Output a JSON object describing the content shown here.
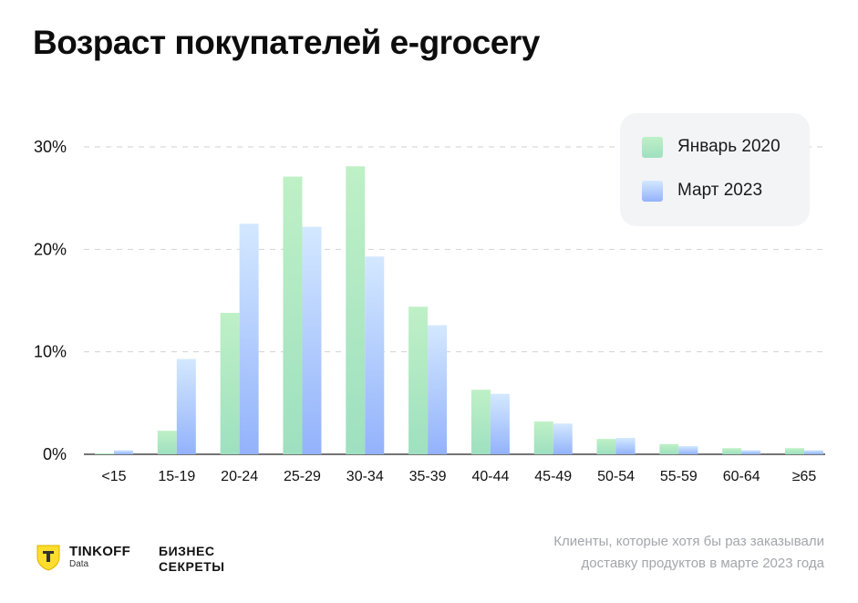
{
  "title": "Возраст покупателей e-grocery",
  "chart_data": {
    "type": "bar",
    "categories": [
      "<15",
      "15-19",
      "20-24",
      "25-29",
      "30-34",
      "35-39",
      "40-44",
      "45-49",
      "50-54",
      "55-59",
      "60-64",
      "≥65"
    ],
    "series": [
      {
        "name": "Январь 2020",
        "values": [
          0.1,
          2.3,
          13.8,
          27.1,
          28.1,
          14.4,
          6.3,
          3.2,
          1.5,
          1.0,
          0.6,
          0.6
        ],
        "color_top": "#bff0c6",
        "color_bottom": "#9ee0c0"
      },
      {
        "name": "Март 2023",
        "values": [
          0.4,
          9.3,
          22.5,
          22.2,
          19.3,
          12.6,
          5.9,
          3.0,
          1.6,
          0.8,
          0.4,
          0.4
        ],
        "color_top": "#d3e8ff",
        "color_bottom": "#93b2fb"
      }
    ],
    "yticks": [
      "0%",
      "10%",
      "20%",
      "30%"
    ],
    "ylim": [
      0,
      30
    ],
    "grid": true,
    "legend_position": "top-right"
  },
  "legend": {
    "items": [
      {
        "label": "Январь 2020",
        "color": "#b5ecc2"
      },
      {
        "label": "Март 2023",
        "color": "#a9c5fd"
      }
    ]
  },
  "footnote": {
    "line1": "Клиенты, которые хотя бы раз заказывали",
    "line2": "доставку продуктов в марте 2023 года"
  },
  "logos": {
    "tinkoff_name": "TINKOFF",
    "tinkoff_sub": "Data",
    "bs_line1": "БИЗНЕС",
    "bs_line2": "СЕКРЕТЫ"
  }
}
